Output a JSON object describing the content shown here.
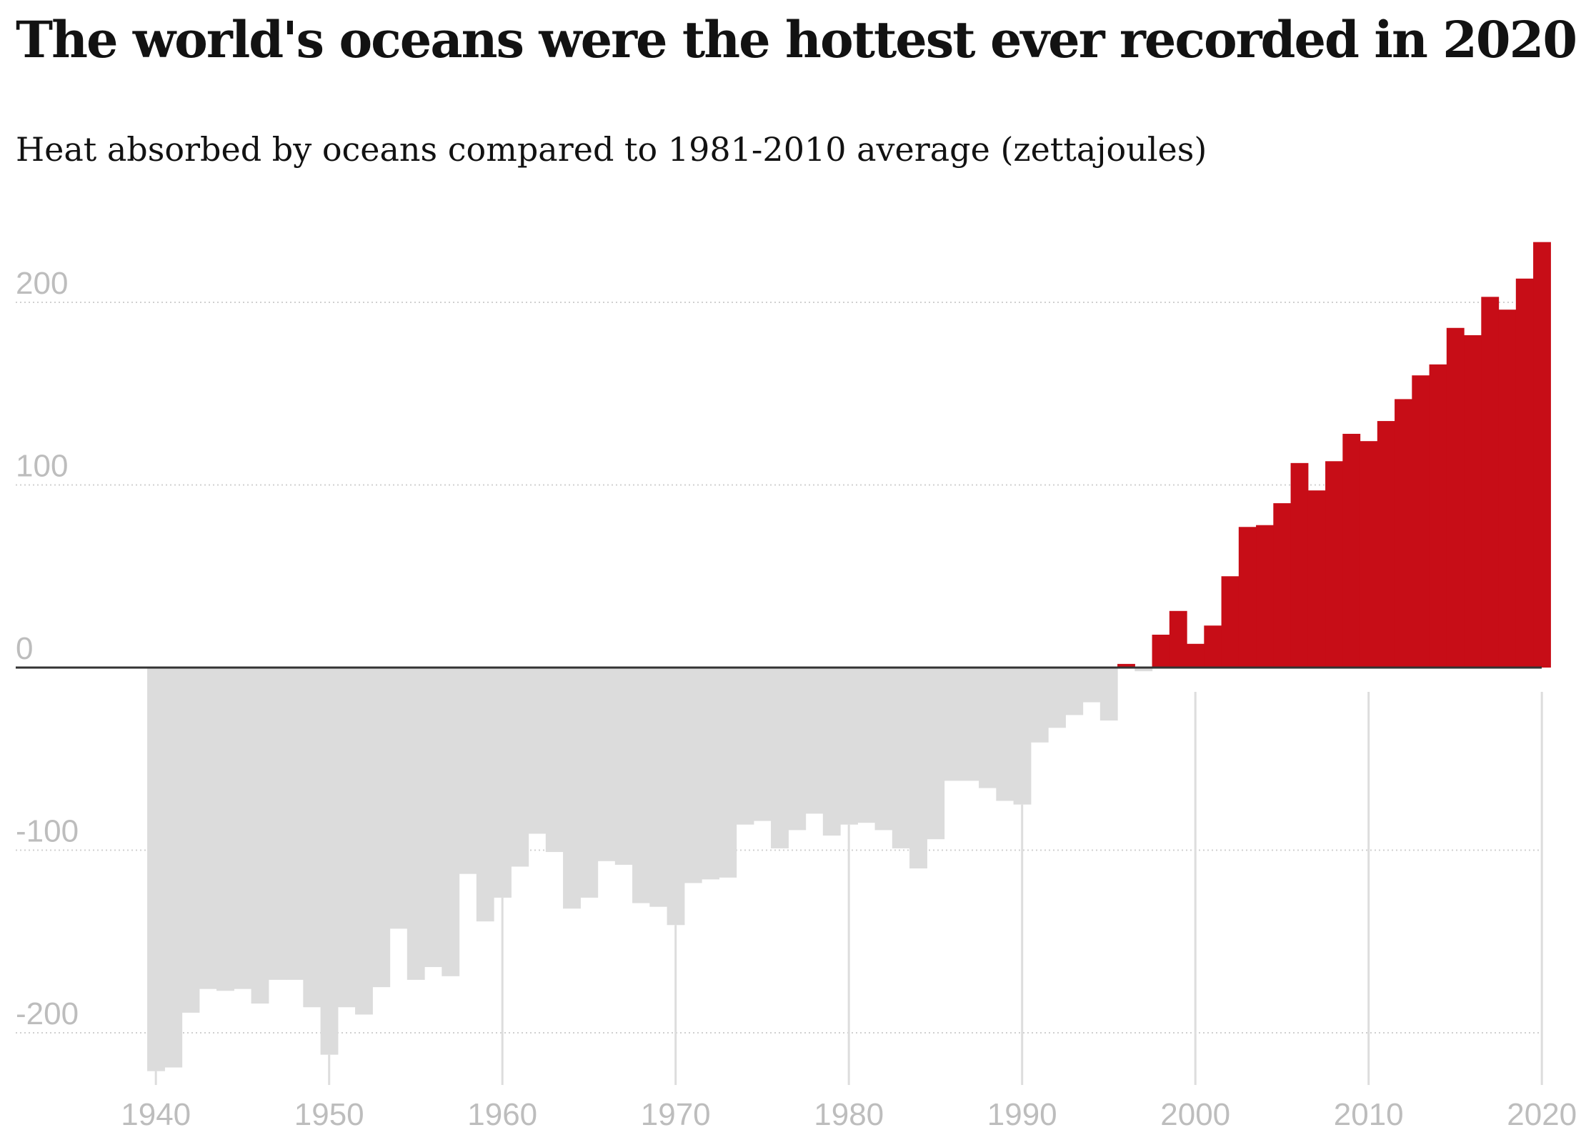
{
  "title": "The world's oceans were the hottest ever recorded in 2020",
  "subtitle": "Heat absorbed by oceans compared to 1981-2010 average (zettajoules)",
  "colors": {
    "positive": "#c70d17",
    "negative": "#dcdcdc",
    "baseline": "#333333",
    "grid": "#d0d0d0",
    "tick_text": "#bdbdbd"
  },
  "chart_data": {
    "type": "bar",
    "title": "The world's oceans were the hottest ever recorded in 2020",
    "subtitle": "Heat absorbed by oceans compared to 1981-2010 average (zettajoules)",
    "xlabel": "",
    "ylabel": "",
    "ylim": [
      -230,
      235
    ],
    "xlim": [
      1940,
      2020
    ],
    "grid": true,
    "y_ticks": [
      200,
      100,
      0,
      -100,
      -200
    ],
    "x_ticks": [
      1940,
      1950,
      1960,
      1970,
      1980,
      1990,
      2000,
      2010,
      2020
    ],
    "years": [
      1940,
      1941,
      1942,
      1943,
      1944,
      1945,
      1946,
      1947,
      1948,
      1949,
      1950,
      1951,
      1952,
      1953,
      1954,
      1955,
      1956,
      1957,
      1958,
      1959,
      1960,
      1961,
      1962,
      1963,
      1964,
      1965,
      1966,
      1967,
      1968,
      1969,
      1970,
      1971,
      1972,
      1973,
      1974,
      1975,
      1976,
      1977,
      1978,
      1979,
      1980,
      1981,
      1982,
      1983,
      1984,
      1985,
      1986,
      1987,
      1988,
      1989,
      1990,
      1991,
      1992,
      1993,
      1994,
      1995,
      1996,
      1997,
      1998,
      1999,
      2000,
      2001,
      2002,
      2003,
      2004,
      2005,
      2006,
      2007,
      2008,
      2009,
      2010,
      2011,
      2012,
      2013,
      2014,
      2015,
      2016,
      2017,
      2018,
      2019,
      2020
    ],
    "values": [
      -221,
      -219,
      -189,
      -176,
      -177,
      -176,
      -184,
      -171,
      -171,
      -186,
      -212,
      -186,
      -190,
      -175,
      -143,
      -171,
      -164,
      -169,
      -113,
      -139,
      -126,
      -109,
      -91,
      -101,
      -132,
      -126,
      -106,
      -108,
      -129,
      -131,
      -141,
      -118,
      -116,
      -115,
      -86,
      -84,
      -99,
      -89,
      -80,
      -92,
      -86,
      -85,
      -89,
      -99,
      -110,
      -94,
      -62,
      -62,
      -66,
      -73,
      -75,
      -41,
      -33,
      -26,
      -19,
      -29,
      2,
      -2,
      18,
      31,
      13,
      23,
      50,
      77,
      78,
      90,
      112,
      97,
      113,
      128,
      124,
      135,
      147,
      160,
      166,
      186,
      182,
      203,
      196,
      213,
      233
    ]
  }
}
